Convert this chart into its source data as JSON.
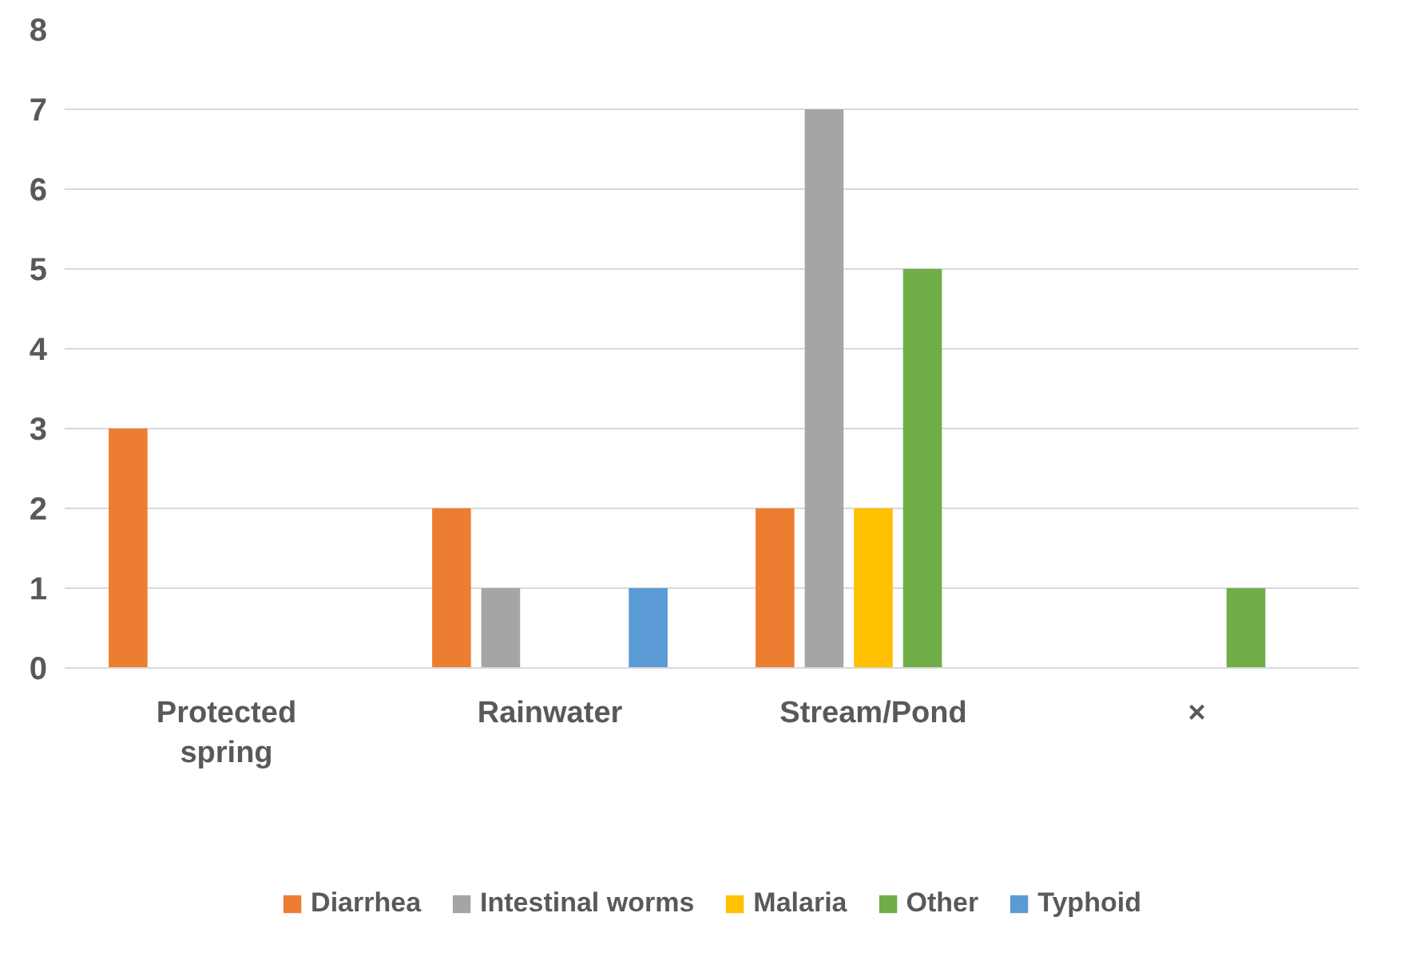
{
  "chart_data": {
    "type": "bar",
    "categories": [
      "Protected spring",
      "Rainwater",
      "Stream/Pond",
      "×"
    ],
    "series": [
      {
        "name": "Diarrhea",
        "color": "#ed7d31",
        "values": [
          3,
          2,
          2,
          null
        ]
      },
      {
        "name": "Intestinal worms",
        "color": "#a5a5a5",
        "values": [
          null,
          1,
          7,
          null
        ]
      },
      {
        "name": "Malaria",
        "color": "#ffc000",
        "values": [
          null,
          null,
          2,
          null
        ]
      },
      {
        "name": "Other",
        "color": "#70ad47",
        "values": [
          null,
          null,
          5,
          1
        ]
      },
      {
        "name": "Typhoid",
        "color": "#5b9bd5",
        "values": [
          null,
          1,
          null,
          null
        ]
      }
    ],
    "ylim": [
      0,
      8
    ],
    "yticks": [
      0,
      1,
      2,
      3,
      4,
      5,
      6,
      7,
      8
    ],
    "grid": "y",
    "legend": "bottom"
  }
}
